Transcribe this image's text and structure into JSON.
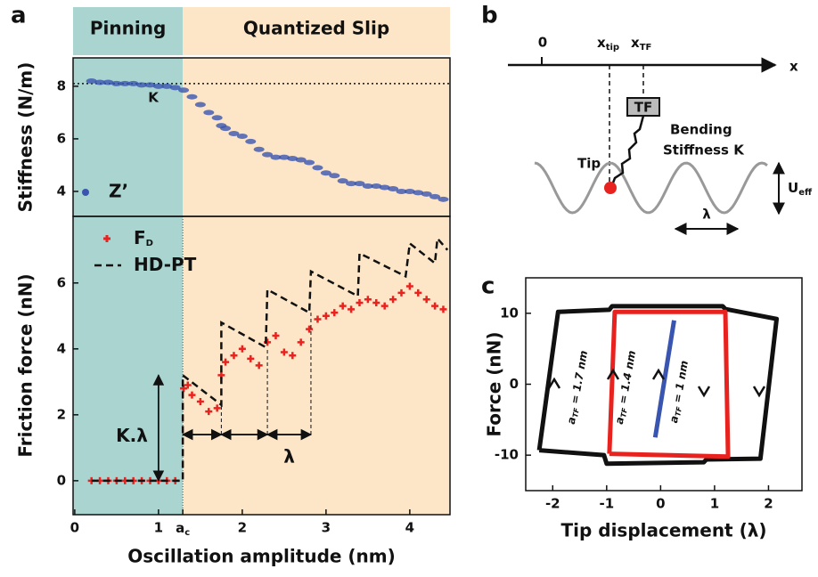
{
  "panel_labels": [
    "a",
    "b",
    "c"
  ],
  "diagram_b": {
    "axis_label": "x",
    "origin": "0",
    "x_tip": [
      "x",
      "tip"
    ],
    "x_tf": [
      "x",
      "TF"
    ],
    "box": "TF",
    "tip": "Tip",
    "bending": [
      "Bending",
      "Stiffness K"
    ],
    "u_eff": [
      "U",
      "eff"
    ],
    "lambda": "λ"
  },
  "chart_data": [
    {
      "type": "scatter",
      "ylabel": "Stiffness (N/m)",
      "regions": [
        {
          "label": "Pinning",
          "color": "#a9d4d0"
        },
        {
          "label": "Quantized Slip",
          "color": "#fde6c8"
        }
      ],
      "xlim": [
        -0.02,
        4.48
      ],
      "ylim": [
        3.05,
        9.08
      ],
      "yticks": [
        4,
        6,
        8
      ],
      "reference": {
        "value": 8.1,
        "label": "K"
      },
      "series": [
        {
          "name": "Z’",
          "color": "#3a55b0",
          "x": [
            0.2,
            0.3,
            0.4,
            0.5,
            0.6,
            0.7,
            0.8,
            0.9,
            1.0,
            1.1,
            1.2,
            1.3,
            1.4,
            1.5,
            1.6,
            1.7,
            1.75,
            1.8,
            1.9,
            2.0,
            2.1,
            2.2,
            2.3,
            2.4,
            2.5,
            2.6,
            2.7,
            2.8,
            2.9,
            3.0,
            3.1,
            3.2,
            3.3,
            3.4,
            3.5,
            3.6,
            3.7,
            3.8,
            3.9,
            4.0,
            4.1,
            4.2,
            4.3,
            4.4
          ],
          "values": [
            8.2,
            8.15,
            8.15,
            8.1,
            8.1,
            8.1,
            8.05,
            8.05,
            8.0,
            8.0,
            7.95,
            7.85,
            7.6,
            7.3,
            7.0,
            6.8,
            6.5,
            6.4,
            6.2,
            6.1,
            5.9,
            5.6,
            5.4,
            5.3,
            5.3,
            5.25,
            5.2,
            5.1,
            4.9,
            4.7,
            4.6,
            4.4,
            4.3,
            4.3,
            4.2,
            4.2,
            4.15,
            4.1,
            4.0,
            4.0,
            3.95,
            3.9,
            3.8,
            3.7
          ]
        }
      ]
    },
    {
      "type": "combo",
      "xlabel": "Oscillation amplitude (nm)",
      "ylabel": "Friction force (nN)",
      "xlim": [
        -0.02,
        4.48
      ],
      "ylim": [
        -1.03,
        8.02
      ],
      "xticks": [
        0,
        1,
        {
          "value": 1.29,
          "label": "a",
          "label_sub": "c"
        },
        2,
        3,
        4
      ],
      "yticks": [
        0,
        2,
        4,
        6
      ],
      "k_lambda": {
        "label": "K.λ",
        "x": 1.0,
        "from": 0,
        "to": 3.2
      },
      "lambda_steps": {
        "label": "λ",
        "x": [
          1.29,
          1.75,
          2.3,
          2.82
        ],
        "y": 1.4
      },
      "series": [
        {
          "type": "scatter",
          "name": "F",
          "name_sub": "D",
          "color": "#e8221f",
          "x": [
            0.2,
            0.3,
            0.4,
            0.5,
            0.6,
            0.7,
            0.8,
            0.9,
            1.0,
            1.1,
            1.2,
            1.3,
            1.35,
            1.4,
            1.5,
            1.6,
            1.7,
            1.75,
            1.8,
            1.9,
            2.0,
            2.1,
            2.2,
            2.3,
            2.4,
            2.5,
            2.6,
            2.7,
            2.8,
            2.9,
            3.0,
            3.1,
            3.2,
            3.3,
            3.4,
            3.5,
            3.6,
            3.7,
            3.8,
            3.9,
            4.0,
            4.1,
            4.2,
            4.3,
            4.4
          ],
          "values": [
            0,
            0,
            0,
            0,
            0,
            0,
            0,
            0,
            0,
            0,
            0,
            2.8,
            2.9,
            2.6,
            2.4,
            2.1,
            2.2,
            3.2,
            3.6,
            3.8,
            4.0,
            3.7,
            3.5,
            4.2,
            4.4,
            3.9,
            3.8,
            4.2,
            4.6,
            4.9,
            5.0,
            5.1,
            5.3,
            5.2,
            5.4,
            5.5,
            5.4,
            5.3,
            5.5,
            5.7,
            5.9,
            5.7,
            5.5,
            5.3,
            5.2
          ]
        },
        {
          "type": "line",
          "name": "HD-PT",
          "color": "#111111",
          "x": [
            0.2,
            1.29,
            1.29,
            1.75,
            1.75,
            2.28,
            2.3,
            2.8,
            2.82,
            3.38,
            3.4,
            3.95,
            4.0,
            4.3,
            4.33,
            4.45
          ],
          "values": [
            0,
            0,
            3.2,
            2.3,
            4.8,
            4.05,
            5.8,
            5.1,
            6.35,
            5.6,
            6.9,
            6.2,
            7.2,
            6.6,
            7.35,
            7.0
          ]
        }
      ]
    },
    {
      "type": "line",
      "xlabel": "Tip displacement (λ)",
      "ylabel": "Force (nN)",
      "xlim": [
        -2.5,
        2.62
      ],
      "ylim": [
        -15,
        15
      ],
      "xticks": [
        -2,
        -1,
        0,
        1,
        2
      ],
      "yticks": [
        -10,
        0,
        10
      ],
      "series": [
        {
          "label_parts": [
            "a",
            "TF",
            " = 1.7 nm"
          ],
          "color": "#111111",
          "x": [
            -2.25,
            -1.9,
            -0.95,
            -0.9,
            1.15,
            1.2,
            2.15,
            1.85,
            0.85,
            0.8,
            -1.0,
            -1.05,
            -2.25
          ],
          "values": [
            -9.3,
            10.2,
            10.5,
            11,
            11,
            10.6,
            9.2,
            -10.5,
            -10.6,
            -11,
            -11.2,
            -10,
            -9.3
          ]
        },
        {
          "label_parts": [
            "a",
            "TF",
            " = 1.4 nm"
          ],
          "color": "#e8221f",
          "x": [
            -0.95,
            -0.85,
            1.2,
            1.25,
            -0.95
          ],
          "values": [
            -9.8,
            10.2,
            10.2,
            -10.2,
            -9.8
          ]
        },
        {
          "label_parts": [
            "a",
            "TF",
            " = 1 nm"
          ],
          "color": "#3a55b0",
          "x": [
            -0.1,
            0.25
          ],
          "values": [
            -7.5,
            9
          ]
        }
      ]
    }
  ]
}
